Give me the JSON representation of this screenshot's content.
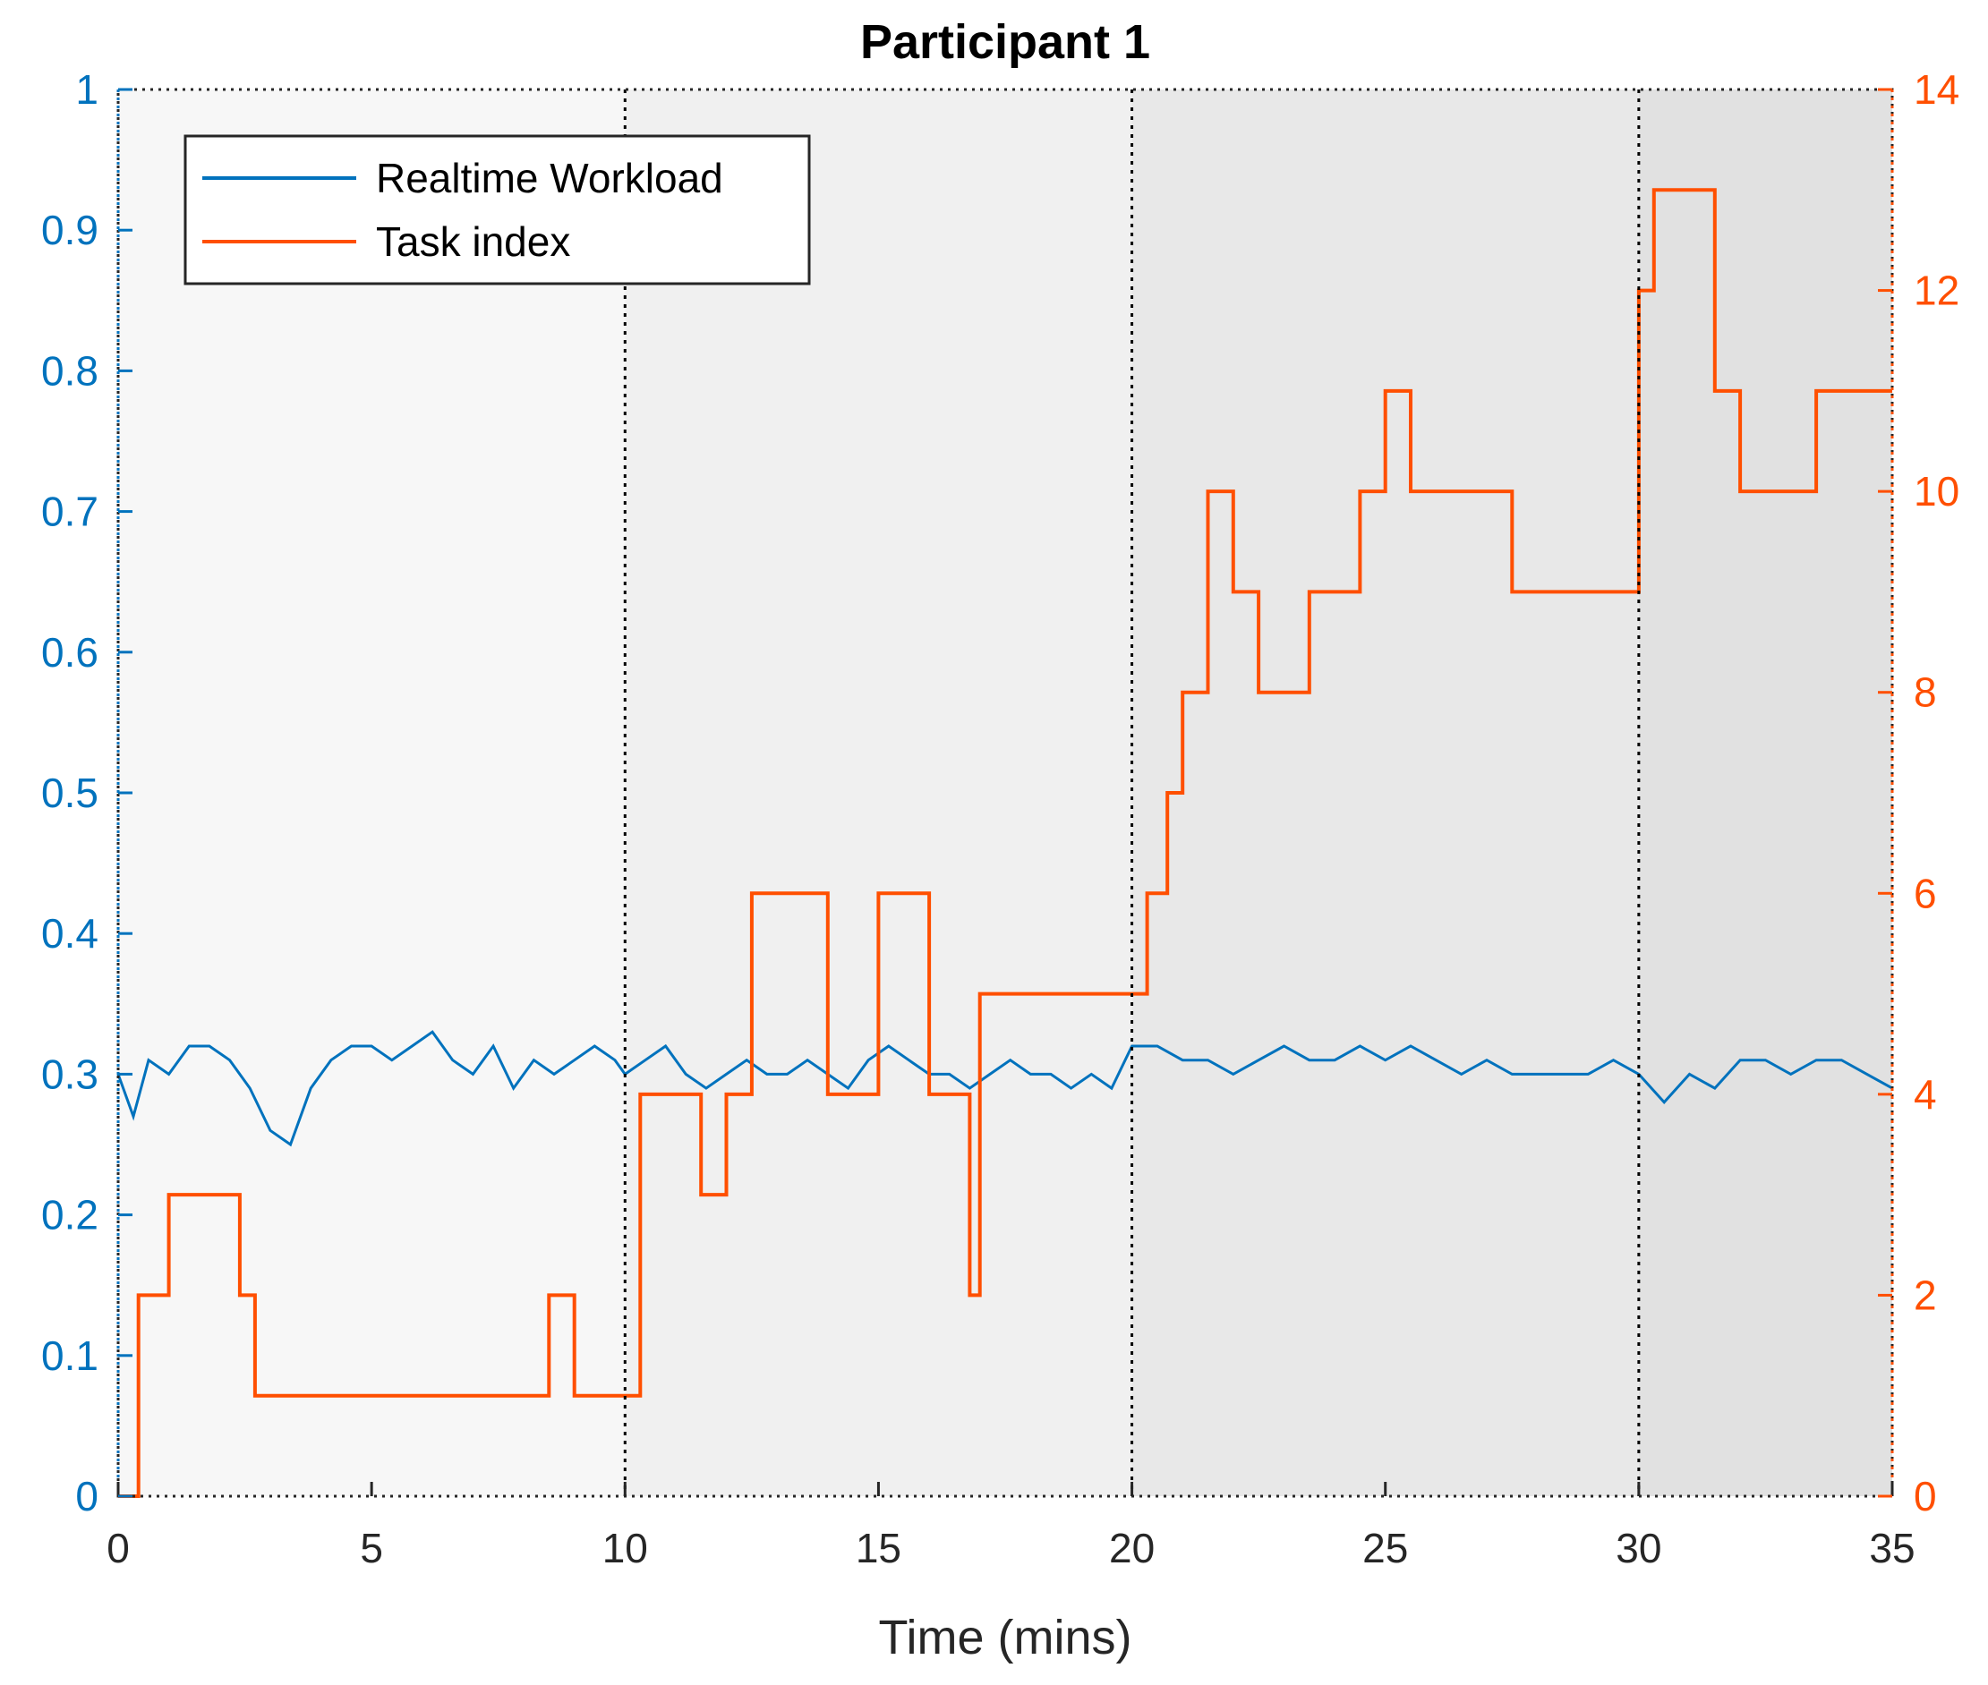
{
  "chart_data": {
    "type": "line",
    "title": "Participant 1",
    "xlabel": "Time (mins)",
    "ylabel_left": "",
    "ylabel_right": "",
    "xlim": [
      0,
      35
    ],
    "ylim_left": [
      0,
      1
    ],
    "ylim_right": [
      0,
      14
    ],
    "x_ticks": [
      "0",
      "5",
      "10",
      "15",
      "20",
      "25",
      "30",
      "35"
    ],
    "y_left_ticks": [
      "0",
      "0.1",
      "0.2",
      "0.3",
      "0.4",
      "0.5",
      "0.6",
      "0.7",
      "0.8",
      "0.9",
      "1"
    ],
    "y_right_ticks": [
      "0",
      "2",
      "4",
      "6",
      "8",
      "10",
      "12",
      "14"
    ],
    "phase_boundaries": [
      10,
      20,
      30
    ],
    "phase_shades": [
      "#f7f7f7",
      "#f0f0f0",
      "#e8e8e8",
      "#e1e1e1"
    ],
    "legend": {
      "position": "top-left",
      "entries": [
        "Realtime Workload",
        "Task index"
      ]
    },
    "series": [
      {
        "name": "Realtime Workload",
        "axis": "left",
        "color": "#0072BD",
        "x": [
          0,
          0.3,
          0.6,
          1.0,
          1.4,
          1.8,
          2.2,
          2.6,
          3.0,
          3.4,
          3.8,
          4.2,
          4.6,
          5.0,
          5.4,
          5.8,
          6.2,
          6.6,
          7.0,
          7.4,
          7.8,
          8.2,
          8.6,
          9.0,
          9.4,
          9.8,
          10.0,
          10.4,
          10.8,
          11.2,
          11.6,
          12.0,
          12.4,
          12.8,
          13.2,
          13.6,
          14.0,
          14.4,
          14.8,
          15.2,
          15.6,
          16.0,
          16.4,
          16.8,
          17.2,
          17.6,
          18.0,
          18.4,
          18.8,
          19.2,
          19.6,
          20.0,
          20.5,
          21.0,
          21.5,
          22.0,
          22.5,
          23.0,
          23.5,
          24.0,
          24.5,
          25.0,
          25.5,
          26.0,
          26.5,
          27.0,
          27.5,
          28.0,
          28.5,
          29.0,
          29.5,
          30.0,
          30.5,
          31.0,
          31.5,
          32.0,
          32.5,
          33.0,
          33.5,
          34.0,
          34.5,
          35.0
        ],
        "values": [
          0.3,
          0.27,
          0.31,
          0.3,
          0.32,
          0.32,
          0.31,
          0.29,
          0.26,
          0.25,
          0.29,
          0.31,
          0.32,
          0.32,
          0.31,
          0.32,
          0.33,
          0.31,
          0.3,
          0.32,
          0.29,
          0.31,
          0.3,
          0.31,
          0.32,
          0.31,
          0.3,
          0.31,
          0.32,
          0.3,
          0.29,
          0.3,
          0.31,
          0.3,
          0.3,
          0.31,
          0.3,
          0.29,
          0.31,
          0.32,
          0.31,
          0.3,
          0.3,
          0.29,
          0.3,
          0.31,
          0.3,
          0.3,
          0.29,
          0.3,
          0.29,
          0.32,
          0.32,
          0.31,
          0.31,
          0.3,
          0.31,
          0.32,
          0.31,
          0.31,
          0.32,
          0.31,
          0.32,
          0.31,
          0.3,
          0.31,
          0.3,
          0.3,
          0.3,
          0.3,
          0.31,
          0.3,
          0.28,
          0.3,
          0.29,
          0.31,
          0.31,
          0.3,
          0.31,
          0.31,
          0.3,
          0.29
        ]
      },
      {
        "name": "Task index",
        "axis": "right",
        "color": "#FF4F00",
        "x": [
          0,
          0.3,
          0.4,
          0.6,
          1.0,
          1.2,
          2.0,
          2.4,
          2.7,
          3.5,
          4.5,
          5.5,
          6.5,
          7.0,
          8.0,
          8.5,
          9.0,
          9.5,
          10.0,
          10.3,
          11.0,
          11.5,
          12.0,
          12.5,
          13.0,
          13.5,
          14.0,
          14.5,
          15.0,
          15.5,
          16.0,
          16.5,
          16.8,
          17.0,
          17.5,
          18.0,
          18.5,
          19.0,
          19.5,
          20.0,
          20.3,
          20.7,
          21.0,
          21.5,
          21.8,
          22.0,
          22.5,
          23.0,
          23.5,
          24.0,
          24.5,
          25.0,
          25.5,
          26.0,
          26.5,
          27.0,
          27.5,
          28.0,
          28.5,
          29.0,
          29.5,
          30.0,
          30.3,
          30.7,
          31.0,
          31.5,
          32.0,
          32.5,
          33.0,
          33.5,
          34.0,
          34.5,
          35.0
        ],
        "values": [
          0,
          0,
          2,
          2,
          3,
          3,
          3,
          2,
          1,
          1,
          1,
          1,
          1,
          1,
          1,
          2,
          1,
          1,
          1,
          4,
          4,
          3,
          4,
          6,
          6,
          6,
          4,
          4,
          6,
          6,
          4,
          4,
          2,
          5,
          5,
          5,
          5,
          5,
          5,
          5,
          6,
          7,
          8,
          10,
          10,
          9,
          8,
          8,
          9,
          9,
          10,
          11,
          10,
          10,
          10,
          10,
          9,
          9,
          9,
          9,
          9,
          12,
          13,
          13,
          13,
          11,
          10,
          10,
          10,
          11,
          11,
          11,
          11
        ]
      }
    ]
  }
}
